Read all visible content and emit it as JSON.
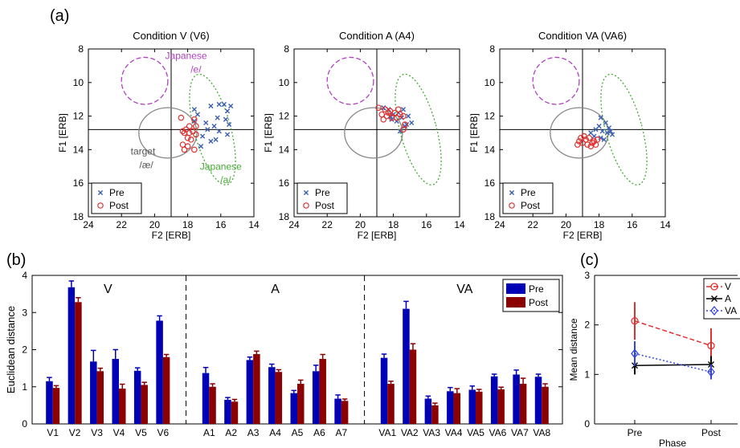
{
  "panel_labels": {
    "a": "(a)",
    "b": "(b)",
    "c": "(c)"
  },
  "chart_data": [
    {
      "type": "scatter",
      "panel": "a",
      "title": "Condition V (V6)",
      "xlabel": "F2 [ERB]",
      "ylabel": "F1 [ERB]",
      "xlim": [
        24,
        14
      ],
      "ylim": [
        8,
        18
      ],
      "xticks": [
        "24",
        "22",
        "20",
        "18",
        "16",
        "14"
      ],
      "yticks": [
        "8",
        "10",
        "12",
        "14",
        "16",
        "18"
      ],
      "crosshair": {
        "x": 19.0,
        "y": 12.8
      },
      "ellipses": [
        {
          "cx": 20.6,
          "cy": 9.9,
          "rx": 1.4,
          "ry": 1.4,
          "style": "dashed",
          "color": "#b040c0"
        },
        {
          "cx": 19.2,
          "cy": 13.0,
          "rx": 1.75,
          "ry": 1.5,
          "style": "solid",
          "color": "#888888"
        },
        {
          "cx": 16.5,
          "cy": 12.8,
          "rx": 1.1,
          "ry": 3.4,
          "angle": -15,
          "style": "dotted",
          "color": "#44aa33"
        }
      ],
      "annotations": [
        {
          "text": "Japanese",
          "x": 18.1,
          "y": 8.6,
          "color": "#b040c0"
        },
        {
          "text": "/e/",
          "x": 17.5,
          "y": 9.4,
          "color": "#b040c0"
        },
        {
          "text": "target",
          "x": 20.7,
          "y": 14.3,
          "color": "#555555"
        },
        {
          "text": "/æ/",
          "x": 20.5,
          "y": 15.1,
          "color": "#555555"
        },
        {
          "text": "Japanese",
          "x": 16.0,
          "y": 15.2,
          "color": "#44aa33"
        },
        {
          "text": "/a/",
          "x": 15.7,
          "y": 16.0,
          "color": "#44aa33"
        }
      ],
      "legend": {
        "placement": "bottom-left",
        "entries": [
          "Pre",
          "Post"
        ]
      },
      "series": [
        {
          "name": "Pre",
          "marker": "x",
          "color": "#3a5fb0",
          "points": [
            [
              17.6,
              11.6
            ],
            [
              17.4,
              11.9
            ],
            [
              16.1,
              11.3
            ],
            [
              15.8,
              11.3
            ],
            [
              15.4,
              11.4
            ],
            [
              16.6,
              11.4
            ],
            [
              15.6,
              11.7
            ],
            [
              16.9,
              12.4
            ],
            [
              16.2,
              12.1
            ],
            [
              15.7,
              12.2
            ],
            [
              15.5,
              12.5
            ],
            [
              16.4,
              12.6
            ],
            [
              16.8,
              12.8
            ],
            [
              16.1,
              12.9
            ],
            [
              15.6,
              13.1
            ],
            [
              17.1,
              13.2
            ],
            [
              16.6,
              13.5
            ],
            [
              17.6,
              12.3
            ],
            [
              17.2,
              13.8
            ],
            [
              16.3,
              13.4
            ]
          ]
        },
        {
          "name": "Post",
          "marker": "o",
          "color": "#e03030",
          "points": [
            [
              18.4,
              12.1
            ],
            [
              17.6,
              12.2
            ],
            [
              17.9,
              12.6
            ],
            [
              18.1,
              12.8
            ],
            [
              17.7,
              12.9
            ],
            [
              18.2,
              13.0
            ],
            [
              17.5,
              13.1
            ],
            [
              18.0,
              13.3
            ],
            [
              17.8,
              13.4
            ],
            [
              18.3,
              13.7
            ],
            [
              18.0,
              13.8
            ],
            [
              17.6,
              14.0
            ],
            [
              18.2,
              14.0
            ],
            [
              17.9,
              13.0
            ],
            [
              18.3,
              12.9
            ],
            [
              17.5,
              12.6
            ]
          ]
        }
      ]
    },
    {
      "type": "scatter",
      "panel": "a",
      "title": "Condition A (A4)",
      "xlabel": "F2 [ERB]",
      "ylabel": "F1 [ERB]",
      "xlim": [
        24,
        14
      ],
      "ylim": [
        8,
        18
      ],
      "xticks": [
        "24",
        "22",
        "20",
        "18",
        "16",
        "14"
      ],
      "yticks": [
        "8",
        "10",
        "12",
        "14",
        "16",
        "18"
      ],
      "crosshair": {
        "x": 19.0,
        "y": 12.8
      },
      "ellipses": [
        {
          "cx": 20.6,
          "cy": 9.9,
          "rx": 1.4,
          "ry": 1.4,
          "style": "dashed",
          "color": "#b040c0"
        },
        {
          "cx": 19.2,
          "cy": 13.0,
          "rx": 1.75,
          "ry": 1.5,
          "style": "solid",
          "color": "#888888"
        },
        {
          "cx": 16.5,
          "cy": 12.8,
          "rx": 1.1,
          "ry": 3.4,
          "angle": -15,
          "style": "dotted",
          "color": "#44aa33"
        }
      ],
      "legend": {
        "placement": "bottom-left",
        "entries": [
          "Pre",
          "Post"
        ]
      },
      "series": [
        {
          "name": "Pre",
          "marker": "x",
          "color": "#3a5fb0",
          "points": [
            [
              18.6,
              11.5
            ],
            [
              18.3,
              11.6
            ],
            [
              18.0,
              11.9
            ],
            [
              17.7,
              11.8
            ],
            [
              17.4,
              11.6
            ],
            [
              18.2,
              12.0
            ],
            [
              17.5,
              12.1
            ],
            [
              17.1,
              12.0
            ],
            [
              16.9,
              12.4
            ],
            [
              17.3,
              12.6
            ],
            [
              17.8,
              12.3
            ],
            [
              17.6,
              12.9
            ],
            [
              17.2,
              12.5
            ],
            [
              18.1,
              12.2
            ]
          ]
        },
        {
          "name": "Post",
          "marker": "o",
          "color": "#e03030",
          "points": [
            [
              18.9,
              11.5
            ],
            [
              18.5,
              11.6
            ],
            [
              18.2,
              11.7
            ],
            [
              17.9,
              11.8
            ],
            [
              17.6,
              11.9
            ],
            [
              18.7,
              11.9
            ],
            [
              18.4,
              12.0
            ],
            [
              18.1,
              12.1
            ],
            [
              17.8,
              12.1
            ],
            [
              18.6,
              12.2
            ],
            [
              17.4,
              12.0
            ],
            [
              17.3,
              12.5
            ],
            [
              17.4,
              12.8
            ],
            [
              18.3,
              11.8
            ],
            [
              17.7,
              11.6
            ]
          ]
        }
      ]
    },
    {
      "type": "scatter",
      "panel": "a",
      "title": "Condition VA (VA6)",
      "xlabel": "F2 [ERB]",
      "ylabel": "F1 [ERB]",
      "xlim": [
        24,
        14
      ],
      "ylim": [
        8,
        18
      ],
      "xticks": [
        "24",
        "22",
        "20",
        "18",
        "16",
        "14"
      ],
      "yticks": [
        "8",
        "10",
        "12",
        "14",
        "16",
        "18"
      ],
      "crosshair": {
        "x": 19.0,
        "y": 12.8
      },
      "ellipses": [
        {
          "cx": 20.6,
          "cy": 9.9,
          "rx": 1.4,
          "ry": 1.4,
          "style": "dashed",
          "color": "#b040c0"
        },
        {
          "cx": 19.2,
          "cy": 13.0,
          "rx": 1.75,
          "ry": 1.5,
          "style": "solid",
          "color": "#888888"
        },
        {
          "cx": 16.5,
          "cy": 12.8,
          "rx": 1.1,
          "ry": 3.4,
          "angle": -15,
          "style": "dotted",
          "color": "#44aa33"
        }
      ],
      "legend": {
        "placement": "bottom-left",
        "entries": [
          "Pre",
          "Post"
        ]
      },
      "series": [
        {
          "name": "Pre",
          "marker": "x",
          "color": "#3a5fb0",
          "points": [
            [
              17.9,
              12.1
            ],
            [
              17.6,
              12.4
            ],
            [
              17.4,
              12.7
            ],
            [
              17.8,
              12.9
            ],
            [
              18.2,
              12.8
            ],
            [
              17.5,
              13.0
            ],
            [
              17.2,
              13.1
            ],
            [
              17.9,
              13.3
            ],
            [
              18.3,
              13.2
            ],
            [
              17.7,
              13.4
            ],
            [
              18.5,
              13.0
            ],
            [
              17.3,
              12.9
            ],
            [
              18.0,
              12.6
            ]
          ]
        },
        {
          "name": "Post",
          "marker": "o",
          "color": "#e03030",
          "points": [
            [
              19.1,
              13.3
            ],
            [
              18.8,
              13.4
            ],
            [
              18.6,
              13.3
            ],
            [
              18.3,
              13.5
            ],
            [
              19.0,
              13.6
            ],
            [
              18.7,
              13.7
            ],
            [
              18.4,
              13.6
            ],
            [
              18.1,
              13.4
            ],
            [
              19.2,
              13.5
            ],
            [
              18.9,
              13.2
            ],
            [
              18.5,
              13.8
            ],
            [
              18.2,
              13.7
            ],
            [
              19.3,
              13.7
            ]
          ]
        }
      ]
    },
    {
      "type": "bar",
      "panel": "b",
      "ylabel": "Euclidean distance",
      "ylim": [
        0,
        4
      ],
      "yticks": [
        "0",
        "1",
        "2",
        "3",
        "4"
      ],
      "groups": [
        {
          "label": "V",
          "categories": [
            "V1",
            "V2",
            "V3",
            "V4",
            "V5",
            "V6"
          ]
        },
        {
          "label": "A",
          "categories": [
            "A1",
            "A2",
            "A3",
            "A4",
            "A5",
            "A6",
            "A7"
          ]
        },
        {
          "label": "VA",
          "categories": [
            "VA1",
            "VA2",
            "VA3",
            "VA4",
            "VA5",
            "VA6",
            "VA7",
            "VA8"
          ]
        }
      ],
      "categories": [
        "V1",
        "V2",
        "V3",
        "V4",
        "V5",
        "V6",
        "A1",
        "A2",
        "A3",
        "A4",
        "A5",
        "A6",
        "A7",
        "VA1",
        "VA2",
        "VA3",
        "VA4",
        "VA5",
        "VA6",
        "VA7",
        "VA8"
      ],
      "legend": {
        "placement": "top-right",
        "entries": [
          "Pre",
          "Post"
        ]
      },
      "series": [
        {
          "name": "Pre",
          "color": "#0000b4",
          "values": [
            1.15,
            3.68,
            1.68,
            1.75,
            1.43,
            2.78,
            1.37,
            0.65,
            1.72,
            1.53,
            0.83,
            1.42,
            0.68,
            1.78,
            3.1,
            0.68,
            0.88,
            0.92,
            1.28,
            1.33,
            1.27
          ],
          "errors": [
            0.1,
            0.17,
            0.3,
            0.25,
            0.08,
            0.13,
            0.15,
            0.06,
            0.08,
            0.08,
            0.07,
            0.16,
            0.1,
            0.1,
            0.2,
            0.07,
            0.1,
            0.1,
            0.06,
            0.12,
            0.07
          ]
        },
        {
          "name": "Post",
          "color": "#8b0000",
          "values": [
            0.97,
            3.28,
            1.42,
            0.95,
            1.05,
            1.8,
            1.0,
            0.6,
            1.88,
            1.4,
            1.08,
            1.75,
            0.62,
            1.08,
            2.0,
            0.5,
            0.83,
            0.87,
            0.93,
            1.08,
            1.0
          ],
          "errors": [
            0.06,
            0.12,
            0.08,
            0.12,
            0.07,
            0.07,
            0.08,
            0.06,
            0.08,
            0.06,
            0.1,
            0.12,
            0.05,
            0.07,
            0.16,
            0.06,
            0.12,
            0.06,
            0.06,
            0.15,
            0.08
          ]
        }
      ]
    },
    {
      "type": "line",
      "panel": "c",
      "ylabel": "Mean distance",
      "xlabel": "Phase",
      "categories": [
        "Pre",
        "Post"
      ],
      "ylim": [
        0,
        3
      ],
      "yticks": [
        "0",
        "1",
        "2",
        "3"
      ],
      "legend": {
        "placement": "top-right",
        "entries": [
          "V",
          "A",
          "VA"
        ]
      },
      "series": [
        {
          "name": "V",
          "color": "#e03030",
          "dash": "dashed",
          "marker": "o",
          "values": [
            2.08,
            1.58
          ],
          "errors": [
            0.38,
            0.35
          ]
        },
        {
          "name": "A",
          "color": "#000000",
          "dash": "solid",
          "marker": "x",
          "values": [
            1.18,
            1.2
          ],
          "errors": [
            0.18,
            0.17
          ]
        },
        {
          "name": "VA",
          "color": "#3344dd",
          "dash": "dotted",
          "marker": "diamond",
          "values": [
            1.42,
            1.05
          ],
          "errors": [
            0.25,
            0.15
          ]
        }
      ]
    }
  ]
}
